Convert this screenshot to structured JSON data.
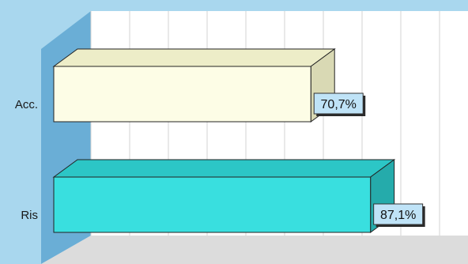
{
  "chart_data": {
    "type": "bar",
    "orientation": "horizontal",
    "style": "3d",
    "categories": [
      "Acc.",
      "Ris"
    ],
    "values": [
      70.7,
      87.1
    ],
    "value_labels": [
      "70,7%",
      "87,1%"
    ],
    "grid": true,
    "colors": {
      "background": "#a9d7ee",
      "side_wall": "#6aaed6",
      "floor": "#dcdcdc",
      "plot_back": "#ffffff",
      "gridline": "#d3d3d3",
      "bar_fronts": [
        "#fdfde6",
        "#39dfdf"
      ],
      "bar_tops": [
        "#ededc8",
        "#2cc6c6"
      ],
      "bar_sides": [
        "#d9d9b4",
        "#25abab"
      ],
      "label_box": "#bfe3f7"
    }
  }
}
